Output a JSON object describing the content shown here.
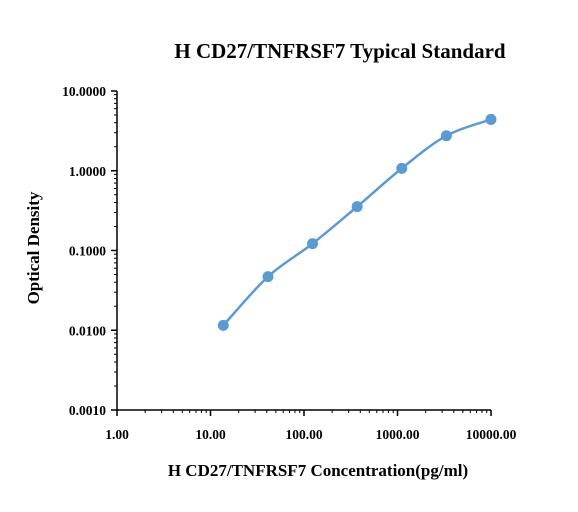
{
  "chart_data": {
    "type": "scatter",
    "title": "H CD27/TNFRSF7 Typical Standard",
    "xlabel": "H CD27/TNFRSF7 Concentration(pg/ml)",
    "ylabel": "Optical Density",
    "x_scale": "log",
    "y_scale": "log",
    "xlim": [
      1,
      10000
    ],
    "ylim": [
      0.001,
      10
    ],
    "x_ticks": [
      {
        "value": 1,
        "label": "1.00"
      },
      {
        "value": 10,
        "label": "10.00"
      },
      {
        "value": 100,
        "label": "100.00"
      },
      {
        "value": 1000,
        "label": "1000.00"
      },
      {
        "value": 10000,
        "label": "10000.00"
      }
    ],
    "y_ticks": [
      {
        "value": 0.001,
        "label": "0.0010"
      },
      {
        "value": 0.01,
        "label": "0.0100"
      },
      {
        "value": 0.1,
        "label": "0.1000"
      },
      {
        "value": 1,
        "label": "1.0000"
      },
      {
        "value": 10,
        "label": "10.0000"
      }
    ],
    "grid": false,
    "legend": "none",
    "series": [
      {
        "color": "#5b9bd5",
        "points": [
          {
            "x": 13.7,
            "y": 0.0115
          },
          {
            "x": 41.2,
            "y": 0.047
          },
          {
            "x": 123.5,
            "y": 0.122
          },
          {
            "x": 370.4,
            "y": 0.355
          },
          {
            "x": 1111.1,
            "y": 1.07
          },
          {
            "x": 3333.3,
            "y": 2.75
          },
          {
            "x": 10000,
            "y": 4.4
          }
        ]
      }
    ]
  }
}
